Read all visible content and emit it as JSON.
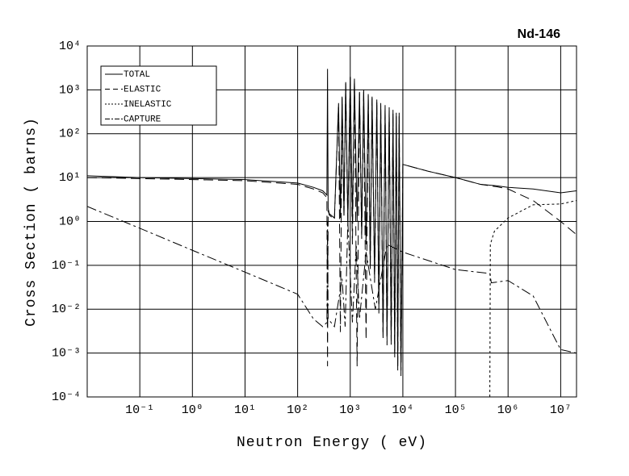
{
  "chart_data": {
    "type": "line",
    "title": "Nd-146",
    "x_label": "Neutron Energy ( eV)",
    "y_label": "Cross Section ( barns)",
    "log_x": true,
    "log_y": true,
    "grid": true,
    "legend": "upper-left",
    "xlim": [
      0.01,
      20000000
    ],
    "ylim": [
      0.0001,
      10000
    ],
    "xticks": [
      {
        "value": 0.1,
        "label": "10⁻¹"
      },
      {
        "value": 1,
        "label": "10⁰"
      },
      {
        "value": 10,
        "label": "10¹"
      },
      {
        "value": 100,
        "label": "10²"
      },
      {
        "value": 1000,
        "label": "10³"
      },
      {
        "value": 10000,
        "label": "10⁴"
      },
      {
        "value": 100000,
        "label": "10⁵"
      },
      {
        "value": 1000000,
        "label": "10⁶"
      },
      {
        "value": 10000000,
        "label": "10⁷"
      }
    ],
    "yticks": [
      {
        "value": 0.0001,
        "label": "10⁻⁴"
      },
      {
        "value": 0.001,
        "label": "10⁻³"
      },
      {
        "value": 0.01,
        "label": "10⁻²"
      },
      {
        "value": 0.1,
        "label": "10⁻¹"
      },
      {
        "value": 1,
        "label": "10⁰"
      },
      {
        "value": 10,
        "label": "10¹"
      },
      {
        "value": 100,
        "label": "10²"
      },
      {
        "value": 1000,
        "label": "10³"
      },
      {
        "value": 10000,
        "label": "10⁴"
      }
    ],
    "series": [
      {
        "name": "TOTAL",
        "color": "#000000",
        "dash": "none",
        "x": [
          0.01,
          0.1,
          1,
          10,
          100,
          200,
          300,
          360,
          370,
          380,
          400,
          500,
          600,
          650,
          700,
          760,
          820,
          900,
          1000,
          1100,
          1200,
          1350,
          1500,
          1650,
          1800,
          2000,
          2200,
          2400,
          2600,
          2900,
          3200,
          3500,
          3800,
          4200,
          4600,
          5000,
          5500,
          6000,
          6500,
          7000,
          7500,
          8000,
          8500,
          9200,
          10000,
          30000,
          100000,
          300000,
          600000,
          1000000,
          3000000,
          10000000,
          20000000
        ],
        "values": [
          11,
          10,
          9.5,
          9,
          7.5,
          6,
          5,
          4,
          3000,
          2,
          1.5,
          1.2,
          500,
          1.2,
          700,
          1.5,
          1500,
          1.0,
          2000,
          0.9,
          1800,
          1.0,
          900,
          0.5,
          1000,
          0.3,
          800,
          0.1,
          700,
          0.05,
          600,
          0.01,
          500,
          0.003,
          450,
          0.002,
          400,
          0.002,
          350,
          0.001,
          300,
          0.0005,
          300,
          0.0004,
          20,
          14,
          10,
          7,
          6.5,
          6,
          5.5,
          4.5,
          5
        ]
      },
      {
        "name": "ELASTIC",
        "color": "#000000",
        "dash": "12,6",
        "x": [
          0.01,
          0.1,
          1,
          10,
          100,
          200,
          300,
          360,
          370,
          380,
          400,
          500,
          600,
          650,
          700,
          760,
          820,
          900,
          1000,
          1100,
          1200,
          1350,
          1500,
          1650,
          1800,
          2000,
          2200,
          2400,
          2600,
          2900,
          3200,
          3500,
          3800,
          4200,
          4600,
          5000,
          5500,
          6000,
          6500,
          7000,
          7500,
          8000,
          8500,
          9200,
          10000,
          30000,
          100000,
          300000,
          600000,
          1000000,
          3000000,
          10000000,
          20000000
        ],
        "values": [
          10,
          9.5,
          9,
          8.5,
          7,
          5.5,
          4.5,
          3.5,
          0.0005,
          1.8,
          1.4,
          1.1,
          450,
          0.003,
          650,
          1.2,
          1400,
          0.8,
          1900,
          0.3,
          1700,
          0.0005,
          850,
          0.4,
          950,
          0.002,
          750,
          0.08,
          650,
          0.04,
          550,
          0.008,
          450,
          0.002,
          400,
          0.0015,
          350,
          0.0015,
          300,
          0.0008,
          250,
          0.0004,
          250,
          0.0003,
          20,
          14,
          10,
          7,
          6.2,
          5.5,
          3,
          1,
          0.5
        ]
      },
      {
        "name": "INELASTIC",
        "color": "#000000",
        "dash": "3,3",
        "x": [
          450000,
          460000,
          550000,
          1000000,
          3000000,
          10000000,
          20000000
        ],
        "values": [
          0.0001,
          0.3,
          0.6,
          1.2,
          2.4,
          2.5,
          3
        ]
      },
      {
        "name": "CAPTURE",
        "color": "#000000",
        "dash": "12,4,3,4",
        "x": [
          0.01,
          0.1,
          1,
          10,
          100,
          200,
          300,
          360,
          370,
          380,
          500,
          700,
          800,
          900,
          1100,
          1300,
          1500,
          2000,
          3000,
          5000,
          10000,
          100000,
          450000,
          480000,
          1000000,
          3000000,
          8000000,
          10000000,
          20000000
        ],
        "values": [
          2.2,
          0.7,
          0.22,
          0.07,
          0.022,
          0.006,
          0.004,
          0.005,
          1.0,
          0.006,
          0.004,
          0.05,
          0.004,
          1.0,
          0.005,
          0.3,
          0.006,
          0.2,
          0.01,
          0.3,
          0.2,
          0.08,
          0.065,
          0.04,
          0.045,
          0.02,
          0.002,
          0.0012,
          0.001
        ]
      }
    ]
  }
}
